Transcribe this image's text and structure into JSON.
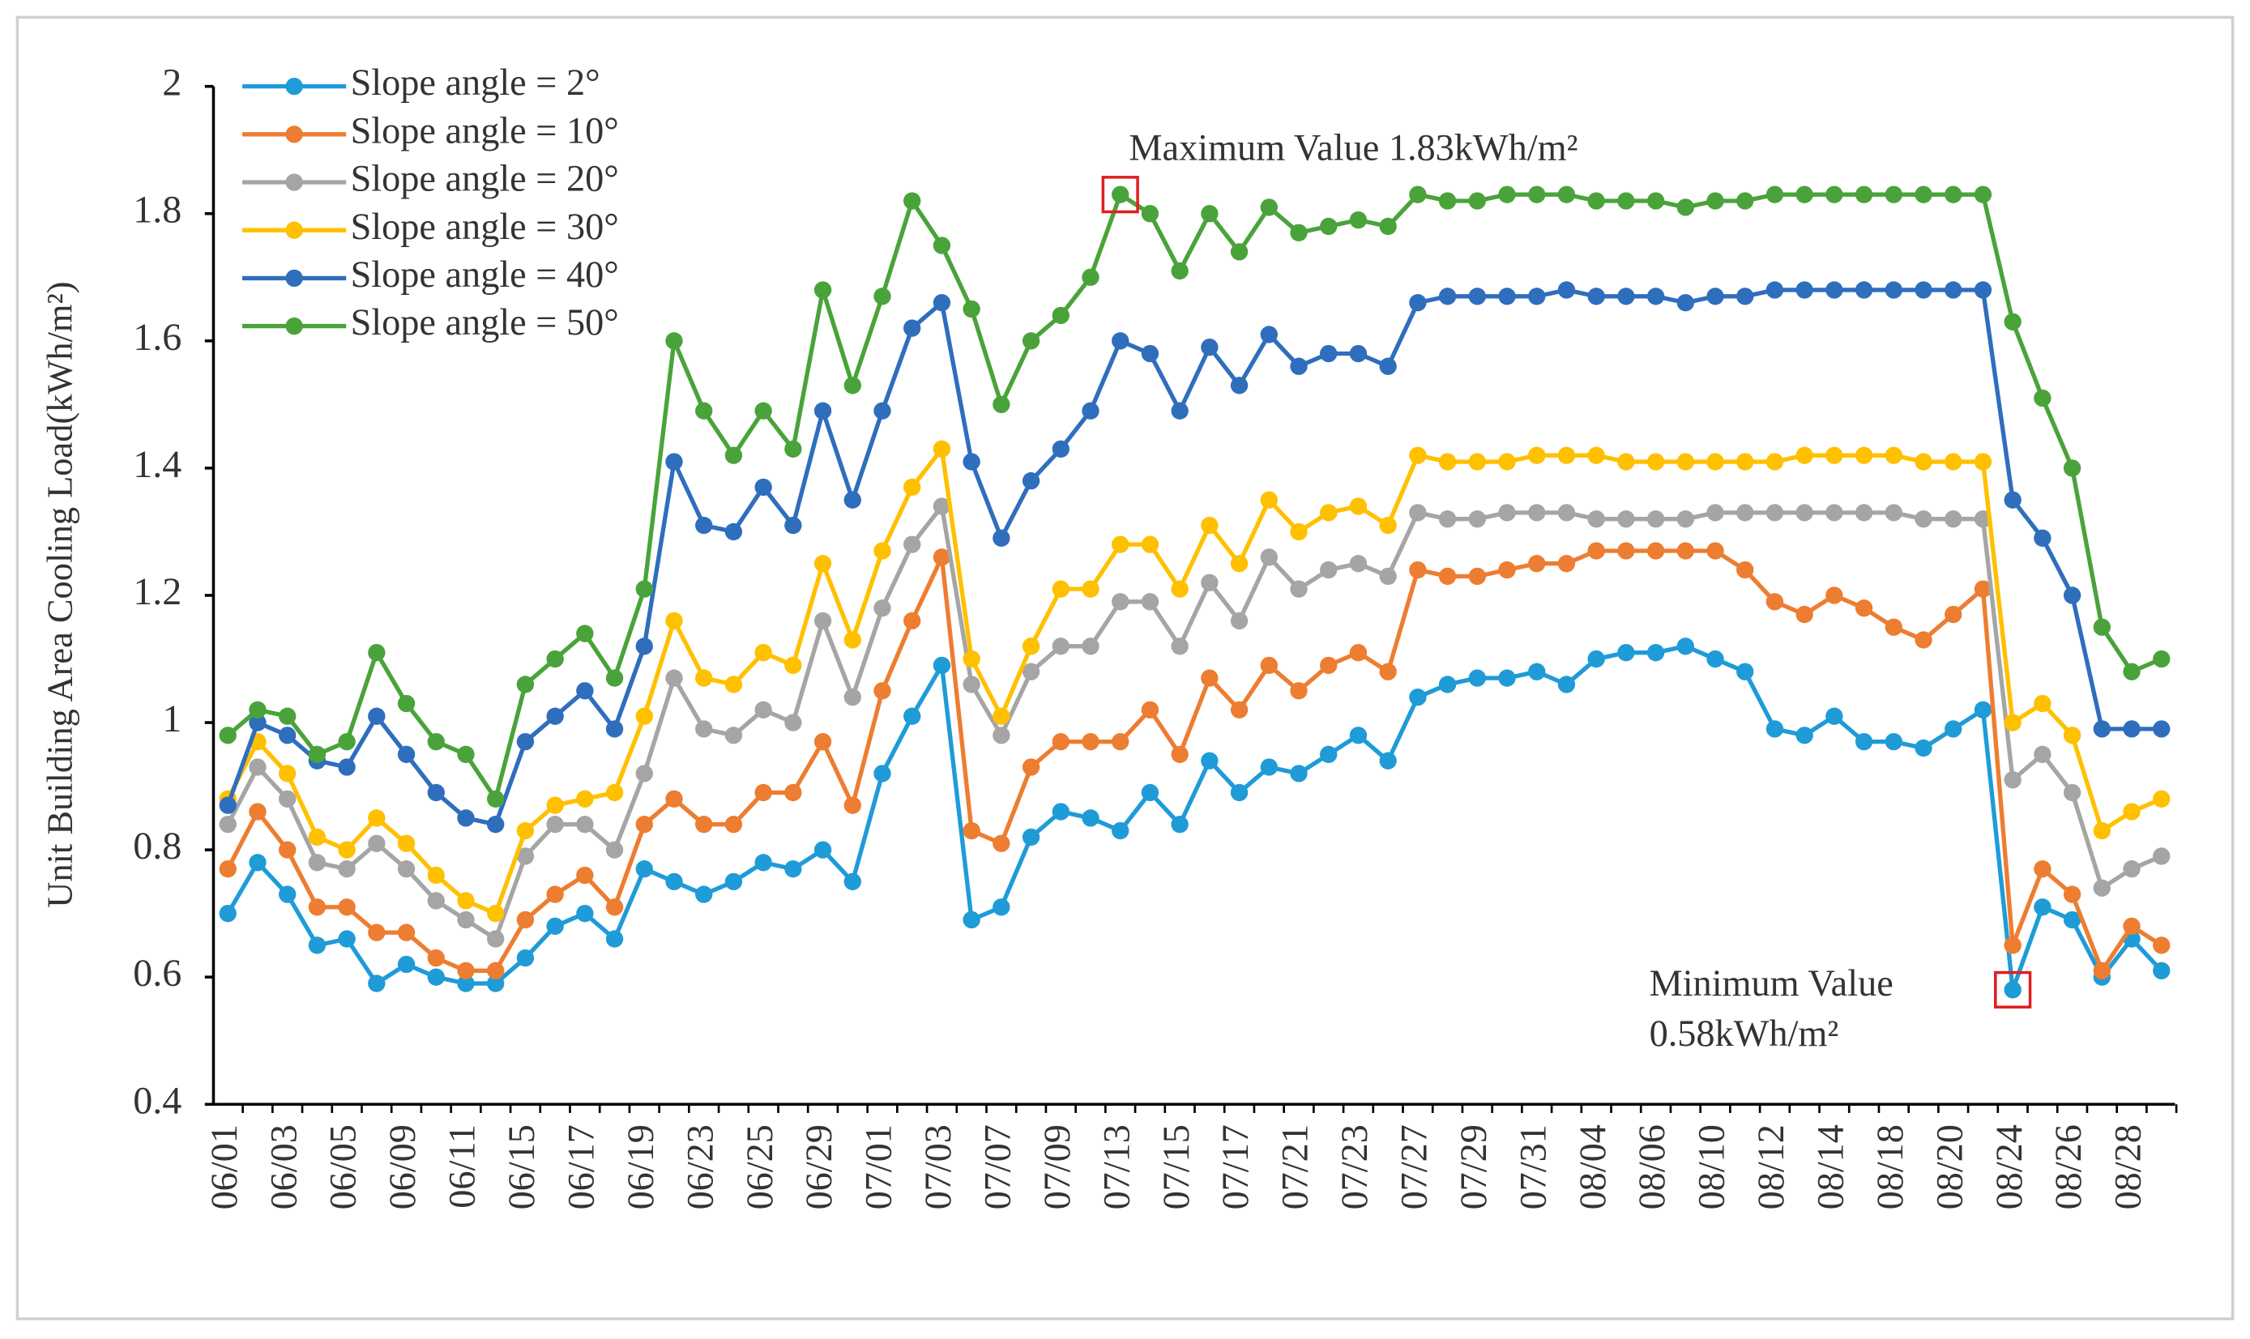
{
  "chart_data": {
    "type": "line",
    "ylabel": "Unit Building Area Cooling Load(kWh/m²)",
    "categories": [
      "06/01",
      null,
      "06/03",
      null,
      "06/05",
      null,
      "06/09",
      null,
      "06/11",
      null,
      "06/15",
      null,
      "06/17",
      null,
      "06/19",
      null,
      "06/23",
      null,
      "06/25",
      null,
      "06/29",
      null,
      "07/01",
      null,
      "07/03",
      null,
      "07/07",
      null,
      "07/09",
      null,
      "07/13",
      null,
      "07/15",
      null,
      "07/17",
      null,
      "07/21",
      null,
      "07/23",
      null,
      "07/27",
      null,
      "07/29",
      null,
      "07/31",
      null,
      "08/04",
      null,
      "08/06",
      null,
      "08/10",
      null,
      "08/12",
      null,
      "08/14",
      null,
      "08/18",
      null,
      "08/20",
      null,
      "08/24",
      null,
      "08/26",
      null,
      "08/28",
      null
    ],
    "series": [
      {
        "name": "Slope angle = 2°",
        "color": "#1f9bd7",
        "values": [
          0.7,
          0.78,
          0.73,
          0.65,
          0.66,
          0.59,
          0.62,
          0.6,
          0.59,
          0.59,
          0.63,
          0.68,
          0.7,
          0.66,
          0.77,
          0.75,
          0.73,
          0.75,
          0.78,
          0.77,
          0.8,
          0.75,
          0.92,
          1.01,
          1.09,
          0.69,
          0.71,
          0.82,
          0.86,
          0.85,
          0.83,
          0.89,
          0.84,
          0.94,
          0.89,
          0.93,
          0.92,
          0.95,
          0.98,
          0.94,
          1.04,
          1.06,
          1.07,
          1.07,
          1.08,
          1.06,
          1.1,
          1.11,
          1.11,
          1.12,
          1.1,
          1.08,
          0.99,
          0.98,
          1.01,
          0.97,
          0.97,
          0.96,
          0.99,
          1.02,
          0.58,
          0.71,
          0.69,
          0.6,
          0.66,
          0.61
        ]
      },
      {
        "name": "Slope angle = 10°",
        "color": "#ed7d31",
        "values": [
          0.77,
          0.86,
          0.8,
          0.71,
          0.71,
          0.67,
          0.67,
          0.63,
          0.61,
          0.61,
          0.69,
          0.73,
          0.76,
          0.71,
          0.84,
          0.88,
          0.84,
          0.84,
          0.89,
          0.89,
          0.97,
          0.87,
          1.05,
          1.16,
          1.26,
          0.83,
          0.81,
          0.93,
          0.97,
          0.97,
          0.97,
          1.02,
          0.95,
          1.07,
          1.02,
          1.09,
          1.05,
          1.09,
          1.11,
          1.08,
          1.24,
          1.23,
          1.23,
          1.24,
          1.25,
          1.25,
          1.27,
          1.27,
          1.27,
          1.27,
          1.27,
          1.24,
          1.19,
          1.17,
          1.2,
          1.18,
          1.15,
          1.13,
          1.17,
          1.21,
          0.65,
          0.77,
          0.73,
          0.61,
          0.68,
          0.65
        ]
      },
      {
        "name": "Slope angle = 20°",
        "color": "#a5a5a5",
        "values": [
          0.84,
          0.93,
          0.88,
          0.78,
          0.77,
          0.81,
          0.77,
          0.72,
          0.69,
          0.66,
          0.79,
          0.84,
          0.84,
          0.8,
          0.92,
          1.07,
          0.99,
          0.98,
          1.02,
          1.0,
          1.16,
          1.04,
          1.18,
          1.28,
          1.34,
          1.06,
          0.98,
          1.08,
          1.12,
          1.12,
          1.19,
          1.19,
          1.12,
          1.22,
          1.16,
          1.26,
          1.21,
          1.24,
          1.25,
          1.23,
          1.33,
          1.32,
          1.32,
          1.33,
          1.33,
          1.33,
          1.32,
          1.32,
          1.32,
          1.32,
          1.33,
          1.33,
          1.33,
          1.33,
          1.33,
          1.33,
          1.33,
          1.32,
          1.32,
          1.32,
          0.91,
          0.95,
          0.89,
          0.74,
          0.77,
          0.79
        ]
      },
      {
        "name": "Slope angle = 30°",
        "color": "#ffc000",
        "values": [
          0.88,
          0.97,
          0.92,
          0.82,
          0.8,
          0.85,
          0.81,
          0.76,
          0.72,
          0.7,
          0.83,
          0.87,
          0.88,
          0.89,
          1.01,
          1.16,
          1.07,
          1.06,
          1.11,
          1.09,
          1.25,
          1.13,
          1.27,
          1.37,
          1.43,
          1.1,
          1.01,
          1.12,
          1.21,
          1.21,
          1.28,
          1.28,
          1.21,
          1.31,
          1.25,
          1.35,
          1.3,
          1.33,
          1.34,
          1.31,
          1.42,
          1.41,
          1.41,
          1.41,
          1.42,
          1.42,
          1.42,
          1.41,
          1.41,
          1.41,
          1.41,
          1.41,
          1.41,
          1.42,
          1.42,
          1.42,
          1.42,
          1.41,
          1.41,
          1.41,
          1.0,
          1.03,
          0.98,
          0.83,
          0.86,
          0.88
        ]
      },
      {
        "name": "Slope angle = 40°",
        "color": "#2f6ebd",
        "values": [
          0.87,
          1.0,
          0.98,
          0.94,
          0.93,
          1.01,
          0.95,
          0.89,
          0.85,
          0.84,
          0.97,
          1.01,
          1.05,
          0.99,
          1.12,
          1.41,
          1.31,
          1.3,
          1.37,
          1.31,
          1.49,
          1.35,
          1.49,
          1.62,
          1.66,
          1.41,
          1.29,
          1.38,
          1.43,
          1.49,
          1.6,
          1.58,
          1.49,
          1.59,
          1.53,
          1.61,
          1.56,
          1.58,
          1.58,
          1.56,
          1.66,
          1.67,
          1.67,
          1.67,
          1.67,
          1.68,
          1.67,
          1.67,
          1.67,
          1.66,
          1.67,
          1.67,
          1.68,
          1.68,
          1.68,
          1.68,
          1.68,
          1.68,
          1.68,
          1.68,
          1.35,
          1.29,
          1.2,
          0.99,
          0.99,
          0.99
        ]
      },
      {
        "name": "Slope angle = 50°",
        "color": "#4aa33a",
        "values": [
          0.98,
          1.02,
          1.01,
          0.95,
          0.97,
          1.11,
          1.03,
          0.97,
          0.95,
          0.88,
          1.06,
          1.1,
          1.14,
          1.07,
          1.21,
          1.6,
          1.49,
          1.42,
          1.49,
          1.43,
          1.68,
          1.53,
          1.67,
          1.82,
          1.75,
          1.65,
          1.5,
          1.6,
          1.64,
          1.7,
          1.83,
          1.8,
          1.71,
          1.8,
          1.74,
          1.81,
          1.77,
          1.78,
          1.79,
          1.78,
          1.83,
          1.82,
          1.82,
          1.83,
          1.83,
          1.83,
          1.82,
          1.82,
          1.82,
          1.81,
          1.82,
          1.82,
          1.83,
          1.83,
          1.83,
          1.83,
          1.83,
          1.83,
          1.83,
          1.83,
          1.63,
          1.51,
          1.4,
          1.15,
          1.08,
          1.1
        ]
      }
    ],
    "ylim": [
      0.4,
      2
    ],
    "yticks": [
      0.4,
      0.6,
      0.8,
      1,
      1.2,
      1.4,
      1.6,
      1.8,
      2
    ],
    "legend": "upper left",
    "grid": false,
    "annotations": {
      "max": [
        "Maximum Value 1.83kWh/m²"
      ],
      "min": [
        "Minimum Value",
        "0.58kWh/m²"
      ]
    }
  }
}
